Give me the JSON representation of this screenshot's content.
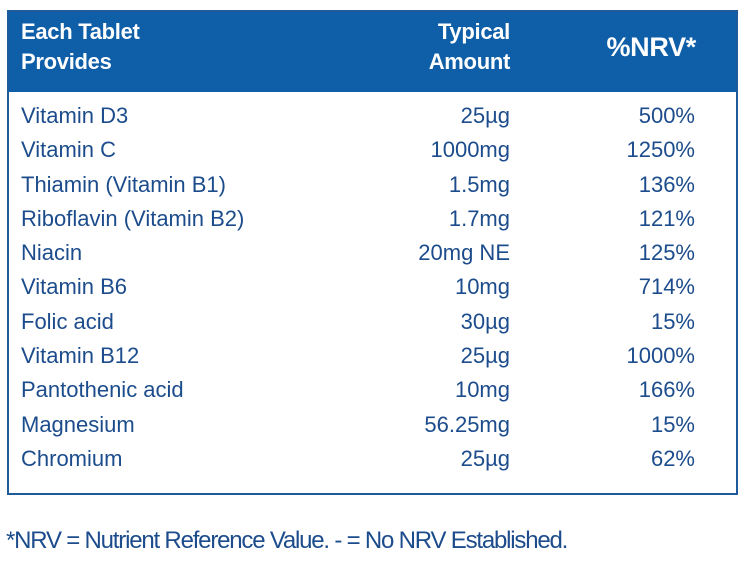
{
  "table": {
    "header": {
      "name_line1": "Each Tablet",
      "name_line2": "Provides",
      "amount_line1": "Typical",
      "amount_line2": "Amount",
      "nrv": "%NRV*"
    },
    "rows": [
      {
        "name": "Vitamin D3",
        "amount": "25µg",
        "nrv": "500%"
      },
      {
        "name": "Vitamin C",
        "amount": "1000mg",
        "nrv": "1250%"
      },
      {
        "name": "Thiamin (Vitamin B1)",
        "amount": "1.5mg",
        "nrv": "136%"
      },
      {
        "name": "Riboflavin (Vitamin B2)",
        "amount": "1.7mg",
        "nrv": "121%"
      },
      {
        "name": "Niacin",
        "amount": "20mg NE",
        "nrv": "125%"
      },
      {
        "name": "Vitamin B6",
        "amount": "10mg",
        "nrv": "714%"
      },
      {
        "name": "Folic acid",
        "amount": "30µg",
        "nrv": "15%"
      },
      {
        "name": "Vitamin B12",
        "amount": "25µg",
        "nrv": "1000%"
      },
      {
        "name": "Pantothenic acid",
        "amount": "10mg",
        "nrv": "166%"
      },
      {
        "name": "Magnesium",
        "amount": "56.25mg",
        "nrv": "15%"
      },
      {
        "name": "Chromium",
        "amount": "25µg",
        "nrv": "62%"
      }
    ]
  },
  "footnote": "*NRV = Nutrient Reference Value. - = No NRV Established.",
  "colors": {
    "header_bg": "#0f5ea8",
    "text": "#1c4c8c",
    "border": "#1f5a9a"
  }
}
